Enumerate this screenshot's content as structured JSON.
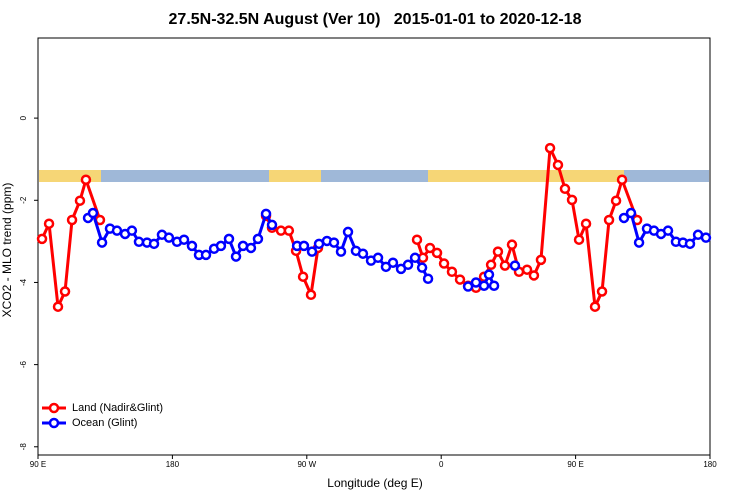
{
  "chart_data": {
    "type": "line",
    "title": "27.5N-32.5N August (Ver 10)   2015-01-01 to 2020-12-18",
    "xlabel": "Longitude (deg E)",
    "ylabel": "XCO2 - MLO trend (ppm)",
    "xlim": [
      90,
      540
    ],
    "ylim": [
      -8.2,
      1.95
    ],
    "xticks": [
      {
        "value": 90,
        "label": "90 E"
      },
      {
        "value": 180,
        "label": "180"
      },
      {
        "value": 270,
        "label": "90 W"
      },
      {
        "value": 360,
        "label": "0"
      },
      {
        "value": 450,
        "label": "90 E"
      },
      {
        "value": 540,
        "label": "180"
      }
    ],
    "yticks": [
      -8,
      -6,
      -4,
      -2,
      0
    ],
    "legend": "bottomleft",
    "series": [
      {
        "name": "Land (Nadir&Glint)",
        "color": "#ff0000",
        "x": [
          92.7,
          97.4,
          103.4,
          108.1,
          112.8,
          118.1,
          122.1,
          131.5,
          null,
          242.7,
          246.7,
          252.7,
          258,
          262.8,
          267.5,
          272.8,
          277.5,
          null,
          343.8,
          347.8,
          352.5,
          357.2,
          361.9,
          367.2,
          372.6,
          378,
          383.3,
          388.7,
          393.4,
          398,
          402.7,
          407.4,
          412.1,
          417.5,
          422.1,
          426.8,
          432.9,
          438.2,
          442.9,
          447.6,
          452.3,
          457,
          463,
          467.7,
          472.4,
          477.1,
          481.1,
          491.2
        ],
        "values": [
          -2.94,
          -2.57,
          -4.59,
          -4.22,
          -2.48,
          -2.01,
          -1.5,
          -2.48,
          null,
          -2.38,
          -2.67,
          -2.74,
          -2.74,
          -3.23,
          -3.86,
          -4.3,
          -3.16,
          null,
          -2.96,
          -3.4,
          -3.16,
          -3.28,
          -3.54,
          -3.74,
          -3.93,
          -4.08,
          -4.13,
          -3.86,
          -3.57,
          -3.25,
          -3.59,
          -3.08,
          -3.74,
          -3.69,
          -3.83,
          -3.45,
          -0.73,
          -1.14,
          -1.72,
          -1.99,
          -2.96,
          -2.57,
          -4.59,
          -4.22,
          -2.48,
          -2.01,
          -1.5,
          -2.48
        ]
      },
      {
        "name": "Ocean (Glint)",
        "color": "#0000ff",
        "x": [
          123.5,
          126.8,
          132.9,
          138.2,
          142.9,
          148.3,
          152.9,
          157.6,
          163,
          167.7,
          173,
          177.7,
          183.1,
          187.8,
          193.1,
          197.8,
          202.5,
          207.9,
          212.5,
          217.9,
          222.6,
          227.3,
          232.6,
          237.3,
          242.7,
          246.7,
          null,
          263.5,
          268.1,
          273.5,
          278.2,
          283.5,
          288.2,
          292.9,
          297.6,
          302.9,
          307.6,
          313,
          317.7,
          323,
          327.7,
          333.1,
          337.8,
          342.5,
          347.2,
          351.2,
          null,
          378,
          383.3,
          388.7,
          392,
          395.4,
          null,
          409.4,
          null,
          482.4,
          487.1,
          492.5,
          497.8,
          502.5,
          507.2,
          511.9,
          517.2,
          521.9,
          526.6,
          532,
          537.3
        ],
        "values": [
          -2.43,
          -2.31,
          -3.03,
          -2.69,
          -2.74,
          -2.82,
          -2.74,
          -3.01,
          -3.03,
          -3.06,
          -2.84,
          -2.91,
          -3.01,
          -2.96,
          -3.11,
          -3.33,
          -3.33,
          -3.18,
          -3.11,
          -2.94,
          -3.37,
          -3.11,
          -3.16,
          -2.94,
          -2.33,
          -2.6,
          null,
          -3.11,
          -3.11,
          -3.25,
          -3.06,
          -2.99,
          -3.03,
          -3.25,
          -2.77,
          -3.23,
          -3.3,
          -3.47,
          -3.4,
          -3.62,
          -3.52,
          -3.67,
          -3.57,
          -3.4,
          -3.64,
          -3.91,
          null,
          -4.1,
          -4.0,
          -4.08,
          -3.81,
          -4.08,
          null,
          -3.59,
          null,
          -2.43,
          -2.31,
          -3.03,
          -2.69,
          -2.74,
          -2.82,
          -2.74,
          -3.01,
          -3.03,
          -3.06,
          -2.84,
          -2.91
        ]
      }
    ]
  }
}
